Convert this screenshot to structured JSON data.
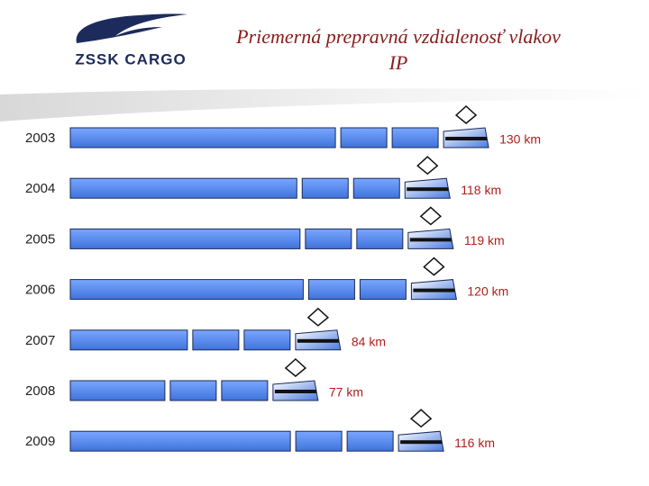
{
  "logo": {
    "text": "ZSSK CARGO"
  },
  "chart_data": {
    "type": "bar",
    "orientation": "horizontal",
    "title": "Priemerná prepravná vzdialenosť vlakov IP",
    "categories": [
      "2003",
      "2004",
      "2005",
      "2006",
      "2007",
      "2008",
      "2009"
    ],
    "values": [
      130,
      118,
      119,
      120,
      84,
      77,
      116
    ],
    "value_labels": [
      "130 km",
      "118 km",
      "119 km",
      "120 km",
      "84 km",
      "77 km",
      "116 km"
    ],
    "color": "#5b8ff0"
  }
}
